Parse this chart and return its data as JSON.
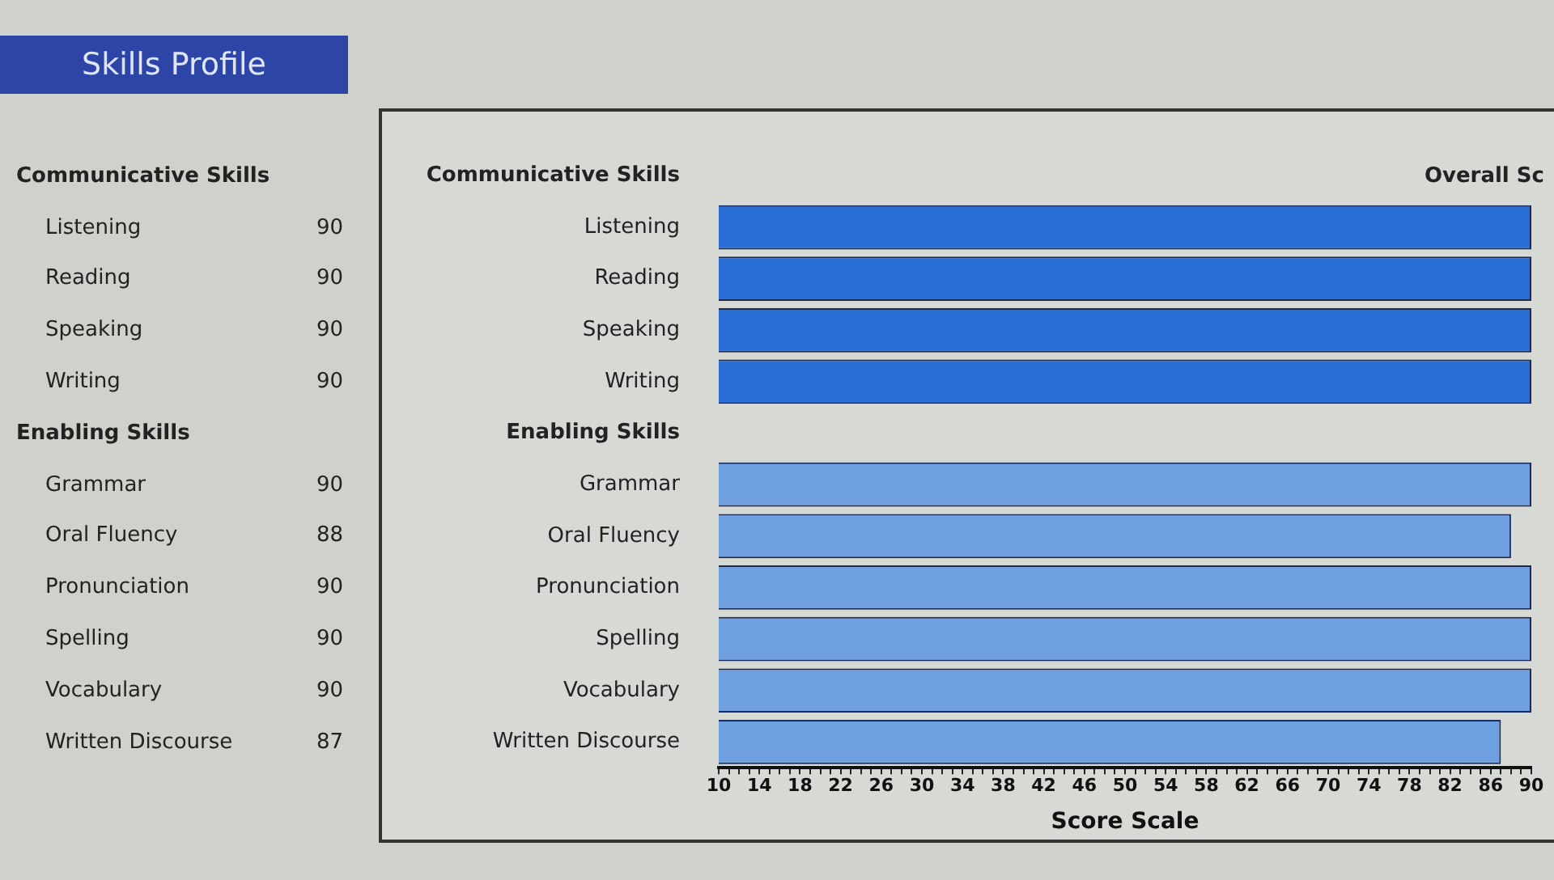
{
  "chart_data": {
    "type": "bar",
    "orientation": "horizontal",
    "title": "Skills Profile",
    "xlabel": "Score Scale",
    "annotations": [
      "Overall Sc"
    ],
    "categories": [
      "Communicative Skills",
      "Listening",
      "Reading",
      "Speaking",
      "Writing",
      "Enabling Skills",
      "Grammar",
      "Oral Fluency",
      "Pronunciation",
      "Spelling",
      "Vocabulary",
      "Written Discourse"
    ],
    "values": [
      null,
      90,
      90,
      90,
      90,
      null,
      90,
      88,
      90,
      90,
      90,
      87
    ],
    "colors": [
      null,
      "#2a6fd6",
      "#2a6fd6",
      "#2a6fd6",
      "#2a6fd6",
      null,
      "#6e9fe0",
      "#6e9fe0",
      "#6e9fe0",
      "#6e9fe0",
      "#6e9fe0",
      "#6e9fe0"
    ],
    "data_labels": true,
    "xlim": [
      10,
      90
    ],
    "xticks": [
      10,
      {
        "value": 11,
        "label": null
      },
      {
        "value": 12,
        "label": null
      },
      {
        "value": 13,
        "label": null
      },
      14,
      {
        "value": 15,
        "label": null
      },
      {
        "value": 16,
        "label": null
      },
      {
        "value": 17,
        "label": null
      },
      18,
      {
        "value": 19,
        "label": null
      },
      {
        "value": 20,
        "label": null
      },
      {
        "value": 21,
        "label": null
      },
      22,
      {
        "value": 23,
        "label": null
      },
      {
        "value": 24,
        "label": null
      },
      {
        "value": 25,
        "label": null
      },
      26,
      {
        "value": 27,
        "label": null
      },
      {
        "value": 28,
        "label": null
      },
      {
        "value": 29,
        "label": null
      },
      30,
      {
        "value": 31,
        "label": null
      },
      {
        "value": 32,
        "label": null
      },
      {
        "value": 33,
        "label": null
      },
      34,
      {
        "value": 35,
        "label": null
      },
      {
        "value": 36,
        "label": null
      },
      {
        "value": 37,
        "label": null
      },
      38,
      {
        "value": 39,
        "label": null
      },
      {
        "value": 40,
        "label": null
      },
      {
        "value": 41,
        "label": null
      },
      42,
      {
        "value": 43,
        "label": null
      },
      {
        "value": 44,
        "label": null
      },
      {
        "value": 45,
        "label": null
      },
      46,
      {
        "value": 47,
        "label": null
      },
      {
        "value": 48,
        "label": null
      },
      {
        "value": 49,
        "label": null
      },
      50,
      {
        "value": 51,
        "label": null
      },
      {
        "value": 52,
        "label": null
      },
      {
        "value": 53,
        "label": null
      },
      54,
      {
        "value": 55,
        "label": null
      },
      {
        "value": 56,
        "label": null
      },
      {
        "value": 57,
        "label": null
      },
      58,
      {
        "value": 59,
        "label": null
      },
      {
        "value": 60,
        "label": null
      },
      {
        "value": 61,
        "label": null
      },
      62,
      {
        "value": 63,
        "label": null
      },
      {
        "value": 64,
        "label": null
      },
      {
        "value": 65,
        "label": null
      },
      66,
      {
        "value": 67,
        "label": null
      },
      {
        "value": 68,
        "label": null
      },
      {
        "value": 69,
        "label": null
      },
      70,
      {
        "value": 71,
        "label": null
      },
      {
        "value": 72,
        "label": null
      },
      {
        "value": 73,
        "label": null
      },
      74,
      {
        "value": 75,
        "label": null
      },
      {
        "value": 76,
        "label": null
      },
      {
        "value": 77,
        "label": null
      },
      78,
      {
        "value": 79,
        "label": null
      },
      {
        "value": 80,
        "label": null
      },
      {
        "value": 81,
        "label": null
      },
      82,
      {
        "value": 83,
        "label": null
      },
      {
        "value": 84,
        "label": null
      },
      {
        "value": 85,
        "label": null
      },
      86,
      {
        "value": 87,
        "label": null
      },
      {
        "value": 88,
        "label": null
      },
      {
        "value": 89,
        "label": null
      },
      90
    ]
  }
}
